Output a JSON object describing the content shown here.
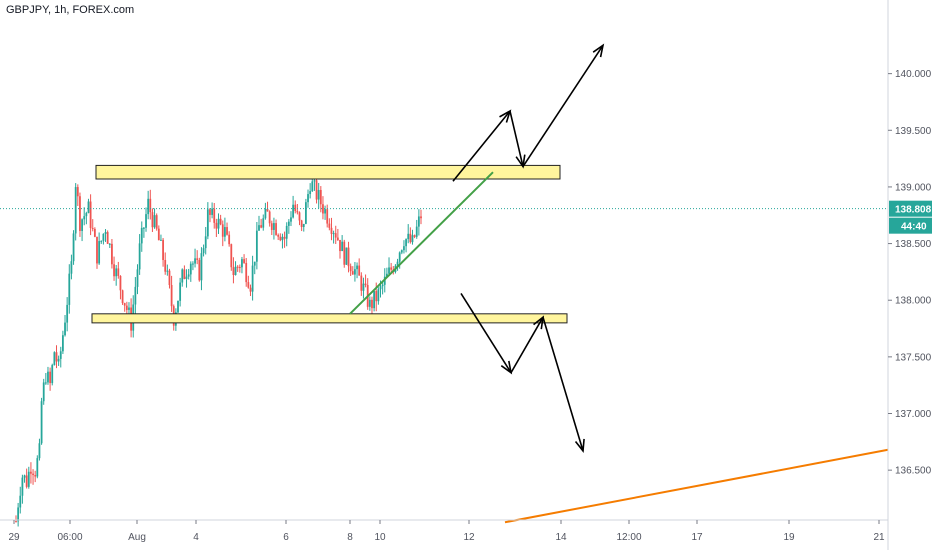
{
  "header": {
    "symbol_label": "GBPJPY, 1h, FOREX.com"
  },
  "colors": {
    "up": "#26a69a",
    "down": "#ef5350",
    "zone_fill": "#fff59d",
    "zone_stroke": "#222222",
    "trendline": "#43a047",
    "support_line": "#f57c00",
    "arrows": "#000000",
    "price_tag_bg": "#26a69a",
    "last_price_line": "#26a69a",
    "axis_line": "#d1d4dc"
  },
  "price_tag": {
    "last_price": "138.808",
    "countdown": "44:40"
  },
  "chart_data": {
    "type": "candlestick",
    "symbol": "GBPJPY",
    "timeframe": "1h",
    "y_axis": {
      "ticks": [
        "140.000",
        "139.500",
        "139.000",
        "138.500",
        "138.000",
        "137.500",
        "137.000",
        "136.500"
      ],
      "ylim": [
        136.06,
        140.65
      ]
    },
    "x_axis": {
      "ticks": [
        "29",
        "06:00",
        "Aug",
        "4",
        "6",
        "8",
        "10",
        "12",
        "14",
        "12:00",
        "17",
        "19",
        "21"
      ]
    },
    "series": [
      {
        "name": "",
        "approx_closes": [
          136.2,
          136.3,
          136.45,
          136.4,
          136.5,
          136.45,
          136.6,
          137.1,
          137.2,
          137.4,
          137.3,
          137.5,
          137.95,
          139.1,
          138.9,
          138.65,
          138.6,
          138.5,
          138.3,
          137.95,
          138.3,
          138.7,
          138.85,
          138.55,
          138.2,
          138.35,
          138.2,
          138.7,
          138.8,
          138.65,
          138.75,
          138.6,
          139.05,
          138.9,
          138.7,
          138.5,
          138.3,
          138.2,
          138.35,
          138.55,
          138.5,
          138.7,
          138.81
        ]
      }
    ],
    "annotations": {
      "resistance_zone": [
        139.07,
        139.19
      ],
      "support_zone": [
        137.8,
        137.88
      ],
      "ascending_trendline": [
        {
          "bar": 34,
          "price": 137.88
        },
        {
          "bar": 42,
          "price": 139.13
        }
      ],
      "orange_support_line": [
        {
          "price": 136.04
        },
        {
          "price": 136.68
        }
      ],
      "bullish_path": [
        139.07,
        139.67,
        139.19,
        140.25
      ],
      "bearish_path": [
        138.08,
        137.37,
        137.84,
        136.67
      ]
    }
  }
}
